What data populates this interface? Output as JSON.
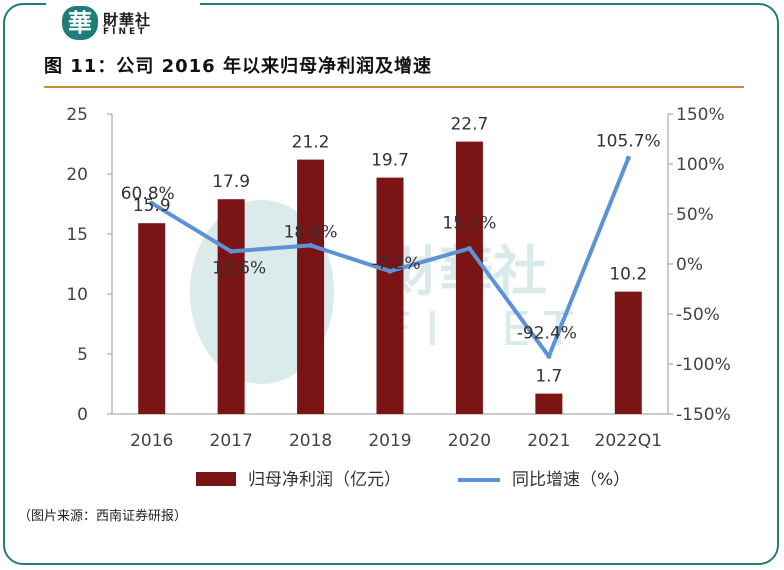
{
  "header": {
    "logo_glyph": "華",
    "logo_cn": "財華社",
    "logo_en": "FINET",
    "figure_title": "图 11：公司 2016 年以来归母净利润及增速"
  },
  "source_note": "（图片来源：西南证券研报）",
  "watermark": {
    "cn": "財華社",
    "en": "FINET"
  },
  "colors": {
    "bar": "#7b1414",
    "line": "#5b93d6",
    "frame": "#1f7d7a",
    "rule": "#c98a3a"
  },
  "chart_data": {
    "type": "bar+line",
    "categories": [
      "2016",
      "2017",
      "2018",
      "2019",
      "2020",
      "2021",
      "2022Q1"
    ],
    "series": [
      {
        "name": "归母净利润（亿元）",
        "type": "bar",
        "axis": "left",
        "values": [
          15.9,
          17.9,
          21.2,
          19.7,
          22.7,
          1.7,
          10.2
        ],
        "labels": [
          "15.9",
          "17.9",
          "21.2",
          "19.7",
          "22.7",
          "1.7",
          "10.2"
        ]
      },
      {
        "name": "同比增速（%）",
        "type": "line",
        "axis": "right",
        "values": [
          60.8,
          12.6,
          18.6,
          -7.2,
          15.5,
          -92.4,
          105.7
        ],
        "labels": [
          "60.8%",
          "12.6%",
          "18.6%",
          "-7.2%",
          "15.5%",
          "-92.4%",
          "105.7%"
        ]
      }
    ],
    "y_left": {
      "min": 0,
      "max": 25,
      "ticks": [
        "0",
        "5",
        "10",
        "15",
        "20",
        "25"
      ]
    },
    "y_right": {
      "min": -150,
      "max": 150,
      "ticks": [
        "-150%",
        "-100%",
        "-50%",
        "0%",
        "50%",
        "100%",
        "150%"
      ]
    },
    "legend_position": "bottom",
    "grid": false
  }
}
